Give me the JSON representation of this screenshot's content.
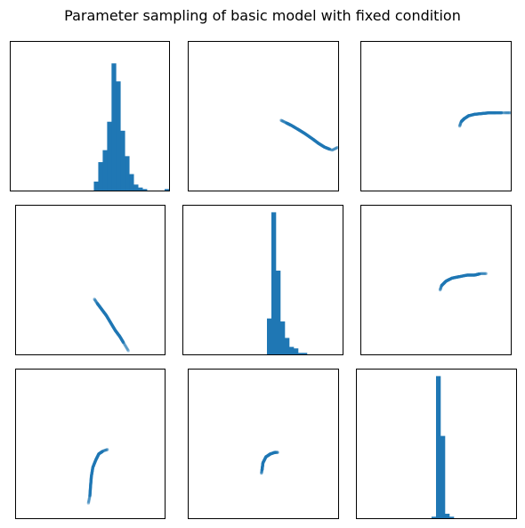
{
  "figure": {
    "title": "Parameter sampling of basic model with fixed condition"
  },
  "colors": {
    "series": "#1f77b4",
    "frame": "#000000",
    "background": "#ffffff"
  },
  "chart_data": [
    {
      "type": "bar",
      "grid": false,
      "xlim": [
        0,
        36
      ],
      "ylim": [
        0,
        1
      ],
      "values": [
        0,
        0,
        0,
        0,
        0,
        0,
        0,
        0,
        0,
        0,
        0,
        0,
        0,
        0,
        0,
        0,
        0,
        0,
        0,
        0.06,
        0.19,
        0.27,
        0.46,
        0.85,
        0.73,
        0.4,
        0.23,
        0.11,
        0.04,
        0.02,
        0.01,
        0,
        0,
        0,
        0,
        0.01
      ]
    },
    {
      "type": "scatter",
      "grid": false,
      "xlim": [
        0,
        1
      ],
      "ylim": [
        0,
        1
      ],
      "curve": [
        [
          0.62,
          0.47
        ],
        [
          0.65,
          0.455
        ],
        [
          0.69,
          0.435
        ],
        [
          0.74,
          0.405
        ],
        [
          0.78,
          0.38
        ],
        [
          0.83,
          0.345
        ],
        [
          0.87,
          0.315
        ],
        [
          0.91,
          0.29
        ],
        [
          0.96,
          0.27
        ],
        [
          1.0,
          0.29
        ]
      ]
    },
    {
      "type": "scatter",
      "grid": false,
      "xlim": [
        0,
        1
      ],
      "ylim": [
        0,
        1
      ],
      "curve": [
        [
          0.66,
          0.43
        ],
        [
          0.67,
          0.46
        ],
        [
          0.69,
          0.48
        ],
        [
          0.72,
          0.5
        ],
        [
          0.76,
          0.51
        ],
        [
          0.81,
          0.515
        ],
        [
          0.86,
          0.52
        ],
        [
          0.9,
          0.52
        ],
        [
          0.96,
          0.52
        ],
        [
          1.0,
          0.52
        ]
      ]
    },
    {
      "type": "scatter",
      "grid": false,
      "xlim": [
        0,
        1
      ],
      "ylim": [
        0,
        1
      ],
      "curve": [
        [
          0.53,
          0.37
        ],
        [
          0.55,
          0.34
        ],
        [
          0.58,
          0.3
        ],
        [
          0.61,
          0.26
        ],
        [
          0.64,
          0.21
        ],
        [
          0.67,
          0.16
        ],
        [
          0.7,
          0.12
        ],
        [
          0.73,
          0.07
        ],
        [
          0.76,
          0.02
        ]
      ]
    },
    {
      "type": "bar",
      "grid": false,
      "xlim": [
        0,
        36
      ],
      "ylim": [
        0,
        1
      ],
      "values": [
        0,
        0,
        0,
        0,
        0,
        0,
        0,
        0,
        0,
        0,
        0,
        0,
        0,
        0,
        0,
        0,
        0,
        0,
        0,
        0.24,
        0.95,
        0.56,
        0.22,
        0.11,
        0.05,
        0.04,
        0.01,
        0.01,
        0,
        0,
        0,
        0,
        0,
        0,
        0,
        0
      ]
    },
    {
      "type": "scatter",
      "grid": false,
      "xlim": [
        0,
        1
      ],
      "ylim": [
        0,
        1
      ],
      "curve": [
        [
          0.53,
          0.43
        ],
        [
          0.54,
          0.46
        ],
        [
          0.57,
          0.49
        ],
        [
          0.61,
          0.51
        ],
        [
          0.66,
          0.52
        ],
        [
          0.71,
          0.53
        ],
        [
          0.76,
          0.53
        ],
        [
          0.8,
          0.54
        ],
        [
          0.84,
          0.54
        ]
      ]
    },
    {
      "type": "scatter",
      "grid": false,
      "xlim": [
        0,
        1
      ],
      "ylim": [
        0,
        1
      ],
      "curve": [
        [
          0.49,
          0.1
        ],
        [
          0.5,
          0.15
        ],
        [
          0.505,
          0.22
        ],
        [
          0.51,
          0.28
        ],
        [
          0.52,
          0.34
        ],
        [
          0.54,
          0.39
        ],
        [
          0.56,
          0.43
        ],
        [
          0.59,
          0.45
        ],
        [
          0.62,
          0.46
        ]
      ]
    },
    {
      "type": "scatter",
      "grid": false,
      "xlim": [
        0,
        1
      ],
      "ylim": [
        0,
        1
      ],
      "curve": [
        [
          0.49,
          0.3
        ],
        [
          0.495,
          0.33
        ],
        [
          0.5,
          0.37
        ],
        [
          0.52,
          0.41
        ],
        [
          0.55,
          0.43
        ],
        [
          0.58,
          0.44
        ],
        [
          0.6,
          0.44
        ]
      ]
    },
    {
      "type": "bar",
      "grid": false,
      "xlim": [
        0,
        36
      ],
      "ylim": [
        0,
        1
      ],
      "values": [
        0,
        0,
        0,
        0,
        0,
        0,
        0,
        0,
        0,
        0,
        0,
        0,
        0,
        0,
        0,
        0,
        0,
        0.01,
        0.95,
        0.55,
        0.03,
        0.01,
        0,
        0,
        0,
        0,
        0,
        0,
        0,
        0,
        0,
        0,
        0,
        0,
        0,
        0
      ]
    }
  ]
}
